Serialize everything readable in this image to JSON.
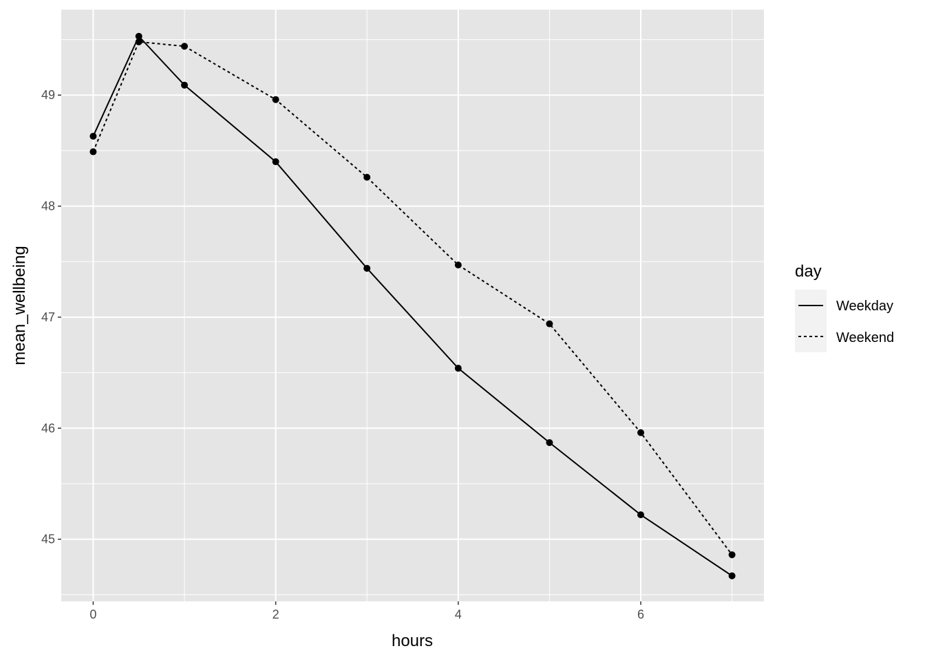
{
  "chart_data": {
    "type": "line",
    "title": "",
    "xlabel": "hours",
    "ylabel": "mean_wellbeing",
    "xlim": [
      -0.35,
      7.35
    ],
    "ylim": [
      44.44,
      49.77
    ],
    "x_ticks": [
      0,
      2,
      4,
      6
    ],
    "y_ticks": [
      45,
      46,
      47,
      48,
      49
    ],
    "grid": true,
    "panel_background": "#e5e5e5",
    "legend": {
      "title": "day",
      "placement": "right"
    },
    "series": [
      {
        "name": "Weekday",
        "linetype": "solid",
        "color": "#000000",
        "x": [
          0,
          0.5,
          1,
          2,
          3,
          4,
          5,
          6,
          7
        ],
        "y": [
          48.63,
          49.53,
          49.09,
          48.4,
          47.44,
          46.54,
          45.87,
          45.22,
          44.67
        ]
      },
      {
        "name": "Weekend",
        "linetype": "dashed",
        "color": "#000000",
        "x": [
          0,
          0.5,
          1,
          2,
          3,
          4,
          5,
          6,
          7
        ],
        "y": [
          48.49,
          49.48,
          49.44,
          48.96,
          48.26,
          47.47,
          46.94,
          45.96,
          44.86
        ]
      }
    ]
  }
}
